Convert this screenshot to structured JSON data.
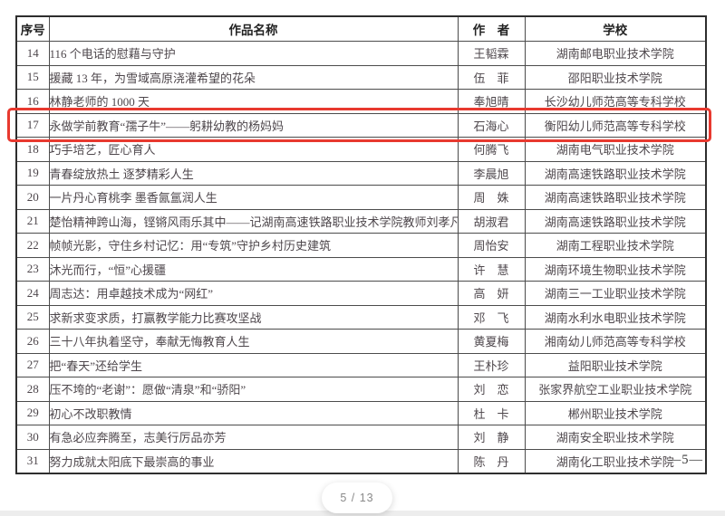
{
  "table": {
    "headers": [
      "序号",
      "作品名称",
      "作　者",
      "学校"
    ],
    "highlighted_no": "17",
    "rows": [
      {
        "no": "14",
        "work": "116 个电话的慰藉与守护",
        "author": "王韬霖",
        "school": "湖南邮电职业技术学院"
      },
      {
        "no": "15",
        "work": "援藏 13 年，为雪域高原浇灌希望的花朵",
        "author": "伍　菲",
        "school": "邵阳职业技术学院"
      },
      {
        "no": "16",
        "work": "林静老师的 1000 天",
        "author": "奉旭晴",
        "school": "长沙幼儿师范高等专科学校"
      },
      {
        "no": "17",
        "work": "永做学前教育“孺子牛”——躬耕幼教的杨妈妈",
        "author": "石海心",
        "school": "衡阳幼儿师范高等专科学校"
      },
      {
        "no": "18",
        "work": "巧手培艺，匠心育人",
        "author": "何腾飞",
        "school": "湖南电气职业技术学院"
      },
      {
        "no": "19",
        "work": "青春绽放热土 逐梦精彩人生",
        "author": "李晨旭",
        "school": "湖南高速铁路职业技术学院"
      },
      {
        "no": "20",
        "work": "一片丹心育桃李 墨香氤氲润人生",
        "author": "周　姝",
        "school": "湖南高速铁路职业技术学院"
      },
      {
        "no": "21",
        "work": "楚怡精神跨山海，铿锵风雨乐其中——记湖南高速铁路职业技术学院教师刘孝凡",
        "author": "胡淑君",
        "school": "湖南高速铁路职业技术学院"
      },
      {
        "no": "22",
        "work": "帧帧光影，守住乡村记忆：用“专筑”守护乡村历史建筑",
        "author": "周怡安",
        "school": "湖南工程职业技术学院"
      },
      {
        "no": "23",
        "work": "沐光而行，“恒”心援疆",
        "author": "许　慧",
        "school": "湖南环境生物职业技术学院"
      },
      {
        "no": "24",
        "work": "周志达：用卓越技术成为“网红”",
        "author": "高　妍",
        "school": "湖南三一工业职业技术学院"
      },
      {
        "no": "25",
        "work": "求新求变求质，打赢教学能力比赛攻坚战",
        "author": "邓　飞",
        "school": "湖南水利水电职业技术学院"
      },
      {
        "no": "26",
        "work": "三十八年执着坚守，奉献无悔教育人生",
        "author": "黄夏梅",
        "school": "湘南幼儿师范高等专科学校"
      },
      {
        "no": "27",
        "work": "把“春天”还给学生",
        "author": "王朴珍",
        "school": "益阳职业技术学院"
      },
      {
        "no": "28",
        "work": "压不垮的“老谢”：愿做“清泉”和“骄阳”",
        "author": "刘　恋",
        "school": "张家界航空工业职业技术学院"
      },
      {
        "no": "29",
        "work": "初心不改职教情",
        "author": "杜　卡",
        "school": "郴州职业技术学院"
      },
      {
        "no": "30",
        "work": "有急必应奔腾至，志美行厉品亦芳",
        "author": "刘　静",
        "school": "湖南安全职业技术学院"
      },
      {
        "no": "31",
        "work": "努力成就太阳底下最崇高的事业",
        "author": "陈　丹",
        "school": "湖南化工职业技术学院"
      }
    ]
  },
  "page_footer": "—5—",
  "pager": {
    "label": "5 / 13"
  },
  "colors": {
    "highlight_border": "#e8392f"
  }
}
